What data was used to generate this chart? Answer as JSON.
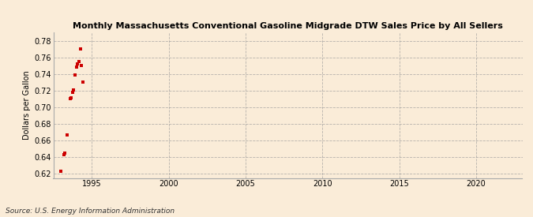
{
  "title": "Monthly Massachusetts Conventional Gasoline Midgrade DTW Sales Price by All Sellers",
  "ylabel": "Dollars per Gallon",
  "source": "Source: U.S. Energy Information Administration",
  "background_color": "#faecd8",
  "marker_color": "#cc0000",
  "xlim": [
    1992.5,
    2023
  ],
  "ylim": [
    0.615,
    0.79
  ],
  "xticks": [
    1995,
    2000,
    2005,
    2010,
    2015,
    2020
  ],
  "yticks": [
    0.62,
    0.64,
    0.66,
    0.68,
    0.7,
    0.72,
    0.74,
    0.76,
    0.78
  ],
  "data_x": [
    1993.0,
    1993.17,
    1993.25,
    1993.42,
    1993.58,
    1993.67,
    1993.75,
    1993.83,
    1993.92,
    1994.0,
    1994.08,
    1994.17,
    1994.25,
    1994.33,
    1994.42
  ],
  "data_y": [
    0.623,
    0.643,
    0.645,
    0.667,
    0.71,
    0.711,
    0.718,
    0.721,
    0.739,
    0.748,
    0.752,
    0.755,
    0.77,
    0.75,
    0.73
  ]
}
